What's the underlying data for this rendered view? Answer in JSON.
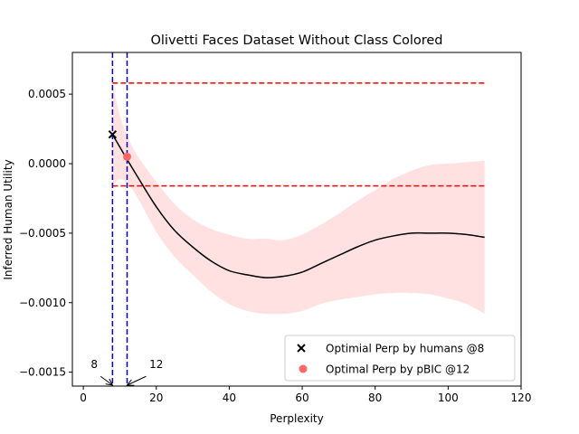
{
  "chart_data": {
    "type": "line",
    "title": "Olivetti Faces Dataset Without Class Colored",
    "xlabel": "Perplexity",
    "ylabel": "Inferred Human Utility",
    "xlim": [
      -3,
      120
    ],
    "ylim": [
      -0.0016,
      0.0008
    ],
    "x_ticks": [
      0,
      20,
      40,
      60,
      80,
      100,
      120
    ],
    "y_ticks": [
      0.0005,
      0.0,
      -0.0005,
      -0.001,
      -0.0015
    ],
    "y_tick_labels": [
      "0.0005",
      "0.0000",
      "−0.0005",
      "−0.0010",
      "−0.0015"
    ],
    "mean_curve": {
      "color": "#000000",
      "x": [
        8,
        10,
        12,
        15,
        20,
        25,
        30,
        35,
        40,
        45,
        50,
        55,
        60,
        65,
        70,
        75,
        80,
        85,
        90,
        95,
        100,
        105,
        110
      ],
      "y": [
        0.00021,
        0.00012,
        3e-05,
        -0.0001,
        -0.00031,
        -0.00048,
        -0.0006,
        -0.0007,
        -0.00077,
        -0.0008,
        -0.00082,
        -0.00081,
        -0.00078,
        -0.00072,
        -0.00066,
        -0.0006,
        -0.00055,
        -0.00052,
        -0.0005,
        -0.0005,
        -0.0005,
        -0.00051,
        -0.00053
      ]
    },
    "confidence_band": {
      "color": "#ffb3b3",
      "x": [
        8,
        10,
        12,
        15,
        20,
        25,
        30,
        35,
        40,
        45,
        50,
        55,
        60,
        65,
        70,
        75,
        80,
        85,
        90,
        95,
        100,
        105,
        110
      ],
      "upper": [
        0.00058,
        0.00035,
        0.0002,
        5e-05,
        -0.00013,
        -0.00029,
        -0.0004,
        -0.00047,
        -0.00051,
        -0.00054,
        -0.00054,
        -0.00055,
        -0.00051,
        -0.00044,
        -0.00036,
        -0.00027,
        -0.00019,
        -0.00011,
        -5e-05,
        -1e-05,
        0.0,
        1e-05,
        2e-05
      ],
      "lower": [
        -0.00016,
        -0.00011,
        -0.00014,
        -0.00025,
        -0.00049,
        -0.00067,
        -0.0008,
        -0.00092,
        -0.00101,
        -0.00106,
        -0.00108,
        -0.00108,
        -0.00106,
        -0.00101,
        -0.00098,
        -0.00096,
        -0.00094,
        -0.00093,
        -0.00093,
        -0.00094,
        -0.00097,
        -0.00101,
        -0.00108
      ]
    },
    "hlines": [
      {
        "y": 0.00058,
        "x_start": 8,
        "x_end": 110,
        "color": "#ff0000",
        "style": "dashed"
      },
      {
        "y": -0.00016,
        "x_start": 8,
        "x_end": 110,
        "color": "#ff0000",
        "style": "dashed"
      }
    ],
    "vlines": [
      {
        "x": 8,
        "color": "#0000cc",
        "style": "dashed"
      },
      {
        "x": 12,
        "color": "#0000cc",
        "style": "dashed"
      }
    ],
    "markers": [
      {
        "label": "Optimial Perp by humans @8",
        "x": 8,
        "y": 0.00021,
        "marker": "x",
        "color": "#000000"
      },
      {
        "label": "Optimal Perp by pBIC @12",
        "x": 12,
        "y": 5e-05,
        "marker": "o",
        "color": "#ff6666"
      }
    ],
    "annotations": [
      {
        "text": "8",
        "x": 8,
        "y": -0.0016,
        "text_x": 3,
        "text_y": -0.00147
      },
      {
        "text": "12",
        "x": 12,
        "y": -0.0016,
        "text_x": 20,
        "text_y": -0.00147
      }
    ],
    "legend_position": "lower-right"
  }
}
